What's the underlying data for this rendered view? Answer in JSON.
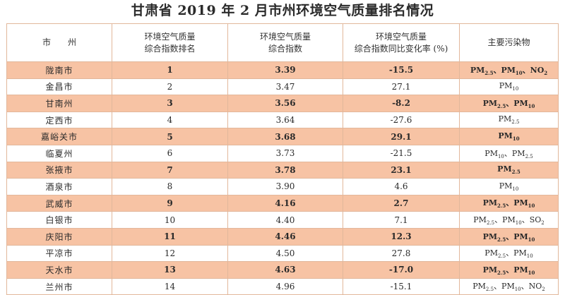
{
  "title": "甘肃省 2019 年 2 月市州环境空气质量排名情况",
  "headers": {
    "city": "市　　州",
    "rank_line1": "环境空气质量",
    "rank_line2": "综合指数排名",
    "index_line1": "环境空气质量",
    "index_line2": "综合指数",
    "change_line1": "环境空气质量",
    "change_line2": "综合指数同比变化率 (%)",
    "pollutant": "主要污染物"
  },
  "rows": [
    {
      "city": "陇南市",
      "rank": "1",
      "index": "3.39",
      "change": "-15.5",
      "highlight": true,
      "pollutants": [
        {
          "base": "PM",
          "sub": "2.5"
        },
        {
          "base": "PM",
          "sub": "10"
        },
        {
          "base": "NO",
          "sub": "2"
        }
      ]
    },
    {
      "city": "金昌市",
      "rank": "2",
      "index": "3.47",
      "change": "27.1",
      "highlight": false,
      "pollutants": [
        {
          "base": "PM",
          "sub": "10"
        }
      ]
    },
    {
      "city": "甘南州",
      "rank": "3",
      "index": "3.56",
      "change": "-8.2",
      "highlight": true,
      "pollutants": [
        {
          "base": "PM",
          "sub": "2.5"
        },
        {
          "base": "PM",
          "sub": "10"
        }
      ]
    },
    {
      "city": "定西市",
      "rank": "4",
      "index": "3.64",
      "change": "-27.6",
      "highlight": false,
      "pollutants": [
        {
          "base": "PM",
          "sub": "2.5"
        }
      ]
    },
    {
      "city": "嘉峪关市",
      "rank": "5",
      "index": "3.68",
      "change": "29.1",
      "highlight": true,
      "pollutants": [
        {
          "base": "PM",
          "sub": "10"
        }
      ]
    },
    {
      "city": "临夏州",
      "rank": "6",
      "index": "3.73",
      "change": "-21.5",
      "highlight": false,
      "pollutants": [
        {
          "base": "PM",
          "sub": "10"
        },
        {
          "base": "PM",
          "sub": "2.5"
        }
      ]
    },
    {
      "city": "张掖市",
      "rank": "7",
      "index": "3.78",
      "change": "23.1",
      "highlight": true,
      "pollutants": [
        {
          "base": "PM",
          "sub": "2.5"
        }
      ]
    },
    {
      "city": "酒泉市",
      "rank": "8",
      "index": "3.90",
      "change": "4.6",
      "highlight": false,
      "pollutants": [
        {
          "base": "PM",
          "sub": "10"
        }
      ]
    },
    {
      "city": "武威市",
      "rank": "9",
      "index": "4.16",
      "change": "2.7",
      "highlight": true,
      "pollutants": [
        {
          "base": "PM",
          "sub": "2.5"
        },
        {
          "base": "PM",
          "sub": "10"
        }
      ]
    },
    {
      "city": "白银市",
      "rank": "10",
      "index": "4.40",
      "change": "7.1",
      "highlight": false,
      "pollutants": [
        {
          "base": "PM",
          "sub": "2.5"
        },
        {
          "base": "PM",
          "sub": "10"
        },
        {
          "base": "SO",
          "sub": "2"
        }
      ]
    },
    {
      "city": "庆阳市",
      "rank": "11",
      "index": "4.46",
      "change": "12.3",
      "highlight": true,
      "pollutants": [
        {
          "base": "PM",
          "sub": "2.5"
        },
        {
          "base": "PM",
          "sub": "10"
        }
      ]
    },
    {
      "city": "平凉市",
      "rank": "12",
      "index": "4.50",
      "change": "27.8",
      "highlight": false,
      "pollutants": [
        {
          "base": "PM",
          "sub": "2.5"
        },
        {
          "base": "PM",
          "sub": "10"
        }
      ]
    },
    {
      "city": "天水市",
      "rank": "13",
      "index": "4.63",
      "change": "-17.0",
      "highlight": true,
      "pollutants": [
        {
          "base": "PM",
          "sub": "2.5"
        },
        {
          "base": "PM",
          "sub": "10"
        }
      ]
    },
    {
      "city": "兰州市",
      "rank": "14",
      "index": "4.96",
      "change": "-15.1",
      "highlight": false,
      "pollutants": [
        {
          "base": "PM",
          "sub": "2.5"
        },
        {
          "base": "PM",
          "sub": "10"
        },
        {
          "base": "NO",
          "sub": "2"
        }
      ]
    }
  ]
}
